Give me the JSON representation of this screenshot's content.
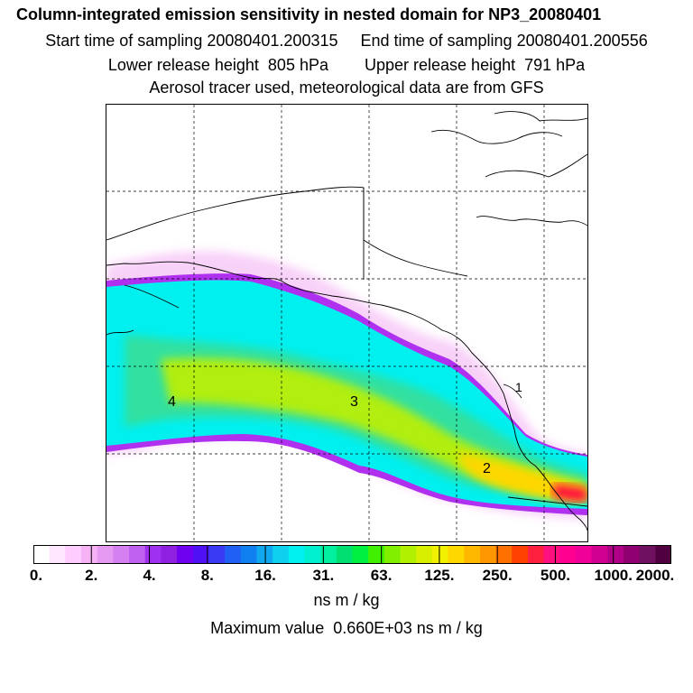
{
  "header": {
    "title": "Column-integrated emission sensitivity in nested domain for NP3_20080401",
    "line1": "Start time of sampling 20080401.200315     End time of sampling 20080401.200556",
    "line2": "Lower release height  805 hPa        Upper release height  791 hPa",
    "line3": "Aerosol tracer used, meteorological data are from GFS"
  },
  "map": {
    "labels": [
      "4",
      "3",
      "2",
      "1"
    ],
    "grid": true,
    "plume_colors": [
      "#ff80ff",
      "#a020f0",
      "#00ffff",
      "#20d0c0",
      "#c0ff00",
      "#ffd700",
      "#ff0040"
    ]
  },
  "colorbar": {
    "colors": [
      "#ffffff",
      "#ffe6ff",
      "#ffccff",
      "#f5b3f5",
      "#e699f0",
      "#d580f0",
      "#c060f0",
      "#a030f0",
      "#9020e0",
      "#7000f0",
      "#5010f5",
      "#3a3af5",
      "#2060f5",
      "#1080f0",
      "#10a8f0",
      "#10d0f0",
      "#00f0f0",
      "#00f0d0",
      "#00f0a0",
      "#00e070",
      "#00f040",
      "#40f000",
      "#80f000",
      "#b0f000",
      "#d8f000",
      "#f0f000",
      "#ffd800",
      "#ffb800",
      "#ff9800",
      "#ff7000",
      "#ff4000",
      "#ff2040",
      "#ff1080",
      "#ff0090",
      "#f00098",
      "#d00090",
      "#b00088",
      "#900070",
      "#701060",
      "#500040"
    ],
    "labels": [
      "0.",
      "2.",
      "4.",
      "8.",
      "16.",
      "31.",
      "63.",
      "125.",
      "250.",
      "500.",
      "1000.",
      "2000."
    ],
    "unit": "ns m / kg"
  },
  "footer": {
    "max_value": "Maximum value  0.660E+03 ns m / kg"
  }
}
